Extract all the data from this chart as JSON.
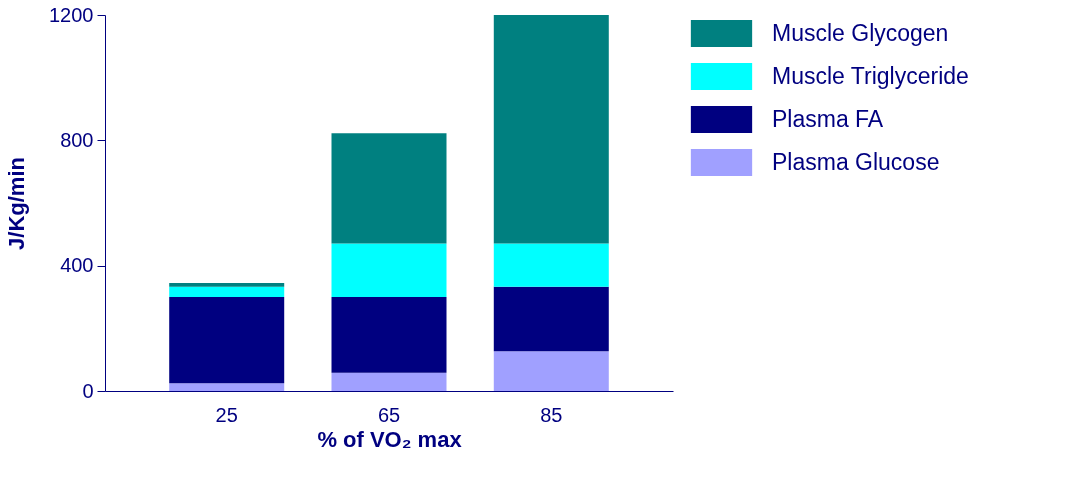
{
  "chart_data": {
    "type": "bar",
    "stacked": true,
    "xlabel": "% of VO₂ max",
    "ylabel": "J/Kg/min",
    "categories": [
      "25",
      "65",
      "85"
    ],
    "series": [
      {
        "name": "Plasma Glucose",
        "color": "#a0a0ff",
        "values": [
          25,
          58,
          127
        ]
      },
      {
        "name": "Plasma FA",
        "color": "#000080",
        "values": [
          275,
          242,
          206
        ]
      },
      {
        "name": "Muscle Triglyceride",
        "color": "#00ffff",
        "values": [
          33,
          171,
          138
        ]
      },
      {
        "name": "Muscle Glycogen",
        "color": "#008080",
        "values": [
          12,
          352,
          729
        ]
      }
    ],
    "ylim": [
      0,
      1200
    ],
    "yticks": [
      0,
      400,
      800,
      1200
    ],
    "grid": false,
    "legend": "top right"
  }
}
